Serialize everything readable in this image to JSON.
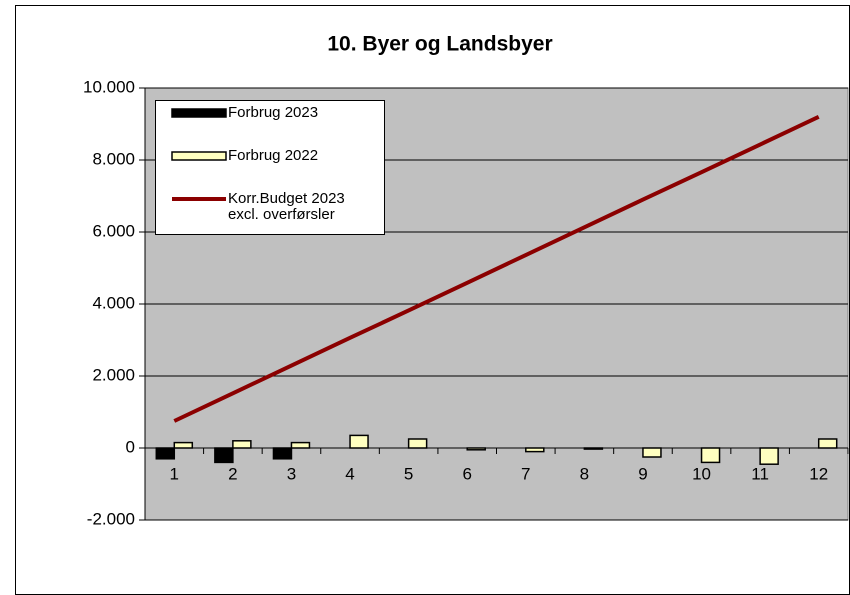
{
  "chart_data": {
    "type": "bar-line",
    "title": "10. Byer og Landsbyer",
    "categories": [
      "1",
      "2",
      "3",
      "4",
      "5",
      "6",
      "7",
      "8",
      "9",
      "10",
      "11",
      "12"
    ],
    "series": [
      {
        "name": "Forbrug 2023",
        "type": "bar",
        "color": "#000000",
        "values": [
          -300,
          -400,
          -300,
          null,
          null,
          null,
          null,
          null,
          null,
          null,
          null,
          null
        ]
      },
      {
        "name": "Forbrug 2022",
        "type": "bar",
        "color": "#ffffc0",
        "values": [
          150,
          200,
          150,
          350,
          250,
          -50,
          -100,
          -30,
          -250,
          -400,
          -450,
          250
        ]
      },
      {
        "name": "Korr.Budget 2023\nexcl. overførsler",
        "type": "line",
        "color": "#8b0000",
        "values": [
          750,
          1520,
          2290,
          3060,
          3820,
          4590,
          5360,
          6130,
          6900,
          7660,
          8430,
          9200
        ]
      }
    ],
    "ylim": [
      -2000,
      10000
    ],
    "yticks": [
      {
        "value": -2000,
        "label": "-2.000"
      },
      0,
      {
        "value": 2000,
        "label": "2.000"
      },
      {
        "value": 4000,
        "label": "4.000"
      },
      {
        "value": 6000,
        "label": "6.000"
      },
      {
        "value": 8000,
        "label": "8.000"
      },
      {
        "value": 10000,
        "label": "10.000"
      }
    ],
    "grid": true,
    "plot_background": "#c0c0c0",
    "legend_position": "upper left"
  }
}
